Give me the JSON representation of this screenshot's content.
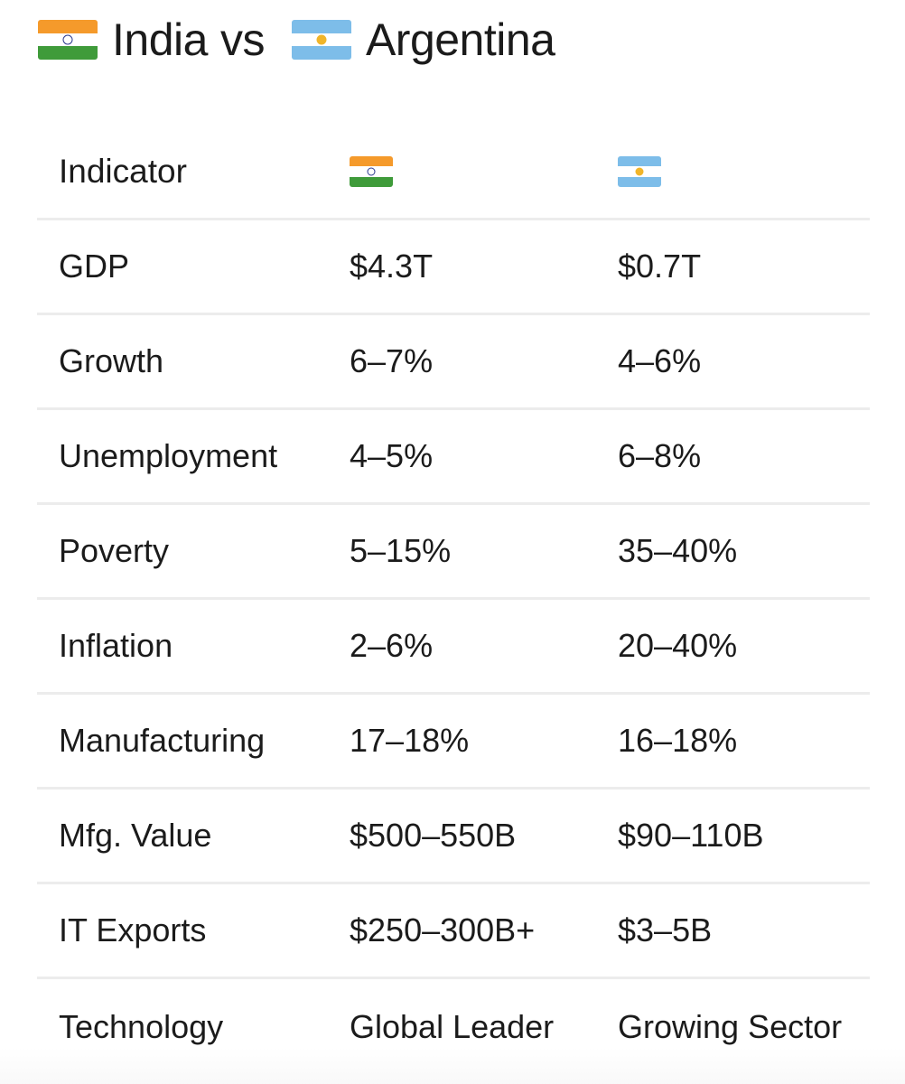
{
  "title": {
    "flag_left": "india-flag-icon",
    "country_left": "India",
    "vs": "vs",
    "flag_right": "argentina-flag-icon",
    "country_right": "Argentina"
  },
  "colors": {
    "india_saffron": "#f59a2b",
    "india_green": "#3f9b3a",
    "india_chakra": "#2b3a8f",
    "argentina_blue": "#7dbde9",
    "argentina_sun": "#f1b52a",
    "divider": "#ececec",
    "text": "#1b1b1b"
  },
  "table": {
    "headers": {
      "indicator": "Indicator",
      "india_icon": "india-flag-icon",
      "argentina_icon": "argentina-flag-icon"
    },
    "rows": [
      {
        "indicator": "GDP",
        "india": "$4.3T",
        "argentina": "$0.7T"
      },
      {
        "indicator": "Growth",
        "india": "6–7%",
        "argentina": "4–6%"
      },
      {
        "indicator": "Unemployment",
        "india": "4–5%",
        "argentina": "6–8%"
      },
      {
        "indicator": "Poverty",
        "india": "5–15%",
        "argentina": "35–40%"
      },
      {
        "indicator": "Inflation",
        "india": "2–6%",
        "argentina": "20–40%"
      },
      {
        "indicator": "Manufacturing",
        "india": "17–18%",
        "argentina": "16–18%"
      },
      {
        "indicator": "Mfg. Value",
        "india": "$500–550B",
        "argentina": "$90–110B"
      },
      {
        "indicator": "IT Exports",
        "india": "$250–300B+",
        "argentina": "$3–5B"
      },
      {
        "indicator": "Technology",
        "india": "Global Leader",
        "argentina": "Growing Sector"
      }
    ]
  }
}
